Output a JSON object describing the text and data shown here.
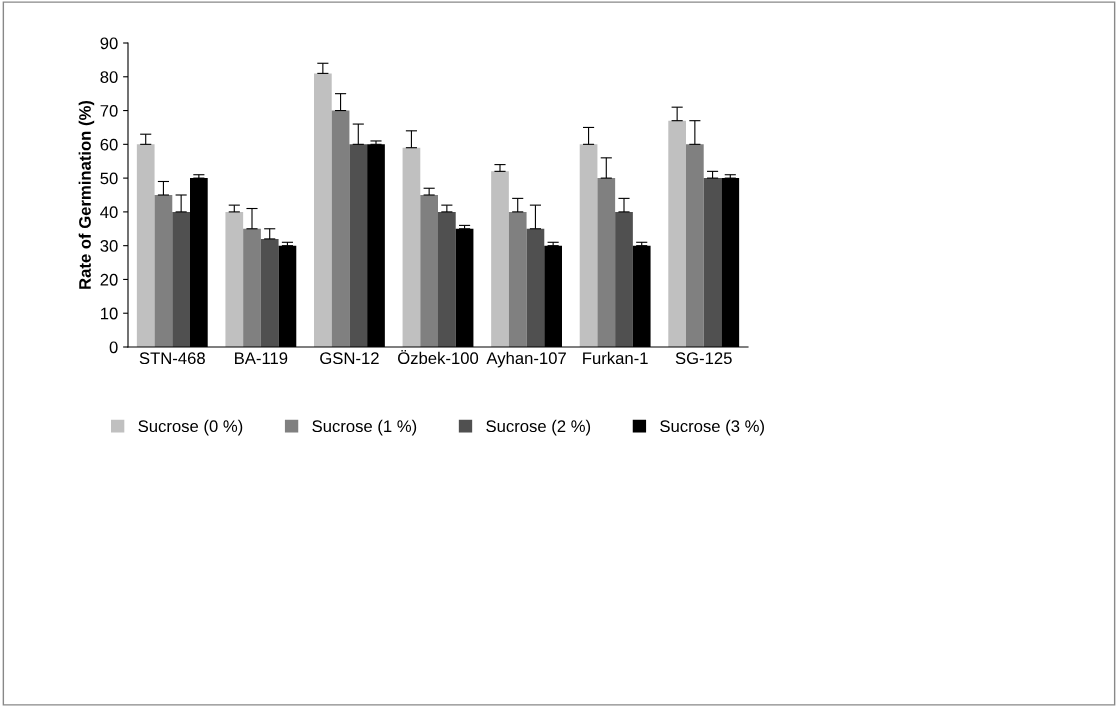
{
  "chart_data": {
    "type": "bar",
    "ylabel": "Rate of Germination (%)",
    "categories": [
      "STN-468",
      "BA-119",
      "GSN-12",
      "Özbek-100",
      "Ayhan-107",
      "Furkan-1",
      "SG-125"
    ],
    "series": [
      {
        "name": "Sucrose (0 %)",
        "color": "#c0c0c0",
        "values": [
          60,
          40,
          81,
          59,
          52,
          60,
          67
        ],
        "errors": [
          [
            60,
            63
          ],
          [
            40,
            42
          ],
          [
            81,
            84
          ],
          [
            59,
            64
          ],
          [
            52,
            54
          ],
          [
            60,
            65
          ],
          [
            67,
            71
          ]
        ]
      },
      {
        "name": "Sucrose (1 %)",
        "color": "#808080",
        "values": [
          45,
          35,
          70,
          45,
          40,
          50,
          60
        ],
        "errors": [
          [
            45,
            49
          ],
          [
            35,
            41
          ],
          [
            70,
            75
          ],
          [
            45,
            47
          ],
          [
            40,
            44
          ],
          [
            50,
            56
          ],
          [
            60,
            67
          ]
        ]
      },
      {
        "name": "Sucrose (2 %)",
        "color": "#505050",
        "values": [
          40,
          32,
          60,
          40,
          35,
          40,
          50
        ],
        "errors": [
          [
            40,
            45
          ],
          [
            32,
            35
          ],
          [
            60,
            66
          ],
          [
            40,
            42
          ],
          [
            35,
            42
          ],
          [
            40,
            44
          ],
          [
            50,
            52
          ]
        ]
      },
      {
        "name": "Sucrose (3 %)",
        "color": "#000000",
        "values": [
          50,
          30,
          60,
          35,
          30,
          30,
          50
        ],
        "errors": [
          [
            50,
            51
          ],
          [
            30,
            31
          ],
          [
            60,
            61
          ],
          [
            35,
            36
          ],
          [
            30,
            31
          ],
          [
            30,
            31
          ],
          [
            50,
            51
          ]
        ]
      }
    ],
    "ylim": [
      0,
      90
    ],
    "yticks": [
      0,
      10,
      20,
      30,
      40,
      50,
      60,
      70,
      80,
      90
    ],
    "grid": false,
    "legend": "bottom"
  }
}
